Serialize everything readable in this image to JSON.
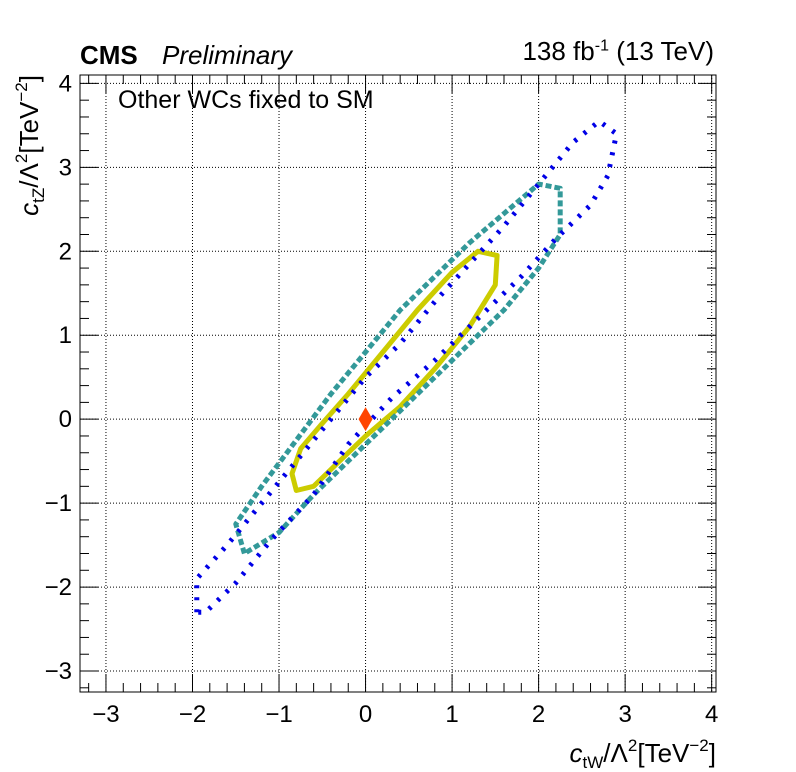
{
  "header": {
    "experiment": "CMS",
    "status": "Preliminary",
    "lumi_value": "138 fb",
    "lumi_exp": "-1",
    "energy": "(13 TeV)",
    "annotation": "Other WCs fixed to SM"
  },
  "chart_data": {
    "type": "contour",
    "xlabel_parts": {
      "c": "c",
      "sub": "tW",
      "mid": "/Λ",
      "sq": "2",
      "unit": "[TeV",
      "exp": "−2",
      "close": "]"
    },
    "ylabel_parts": {
      "c": "c",
      "sub": "tZ",
      "mid": "/Λ",
      "sq": "2",
      "unit": "[TeV",
      "exp": "−2",
      "close": "]"
    },
    "xlim": [
      -3.3,
      4.05
    ],
    "ylim": [
      -3.25,
      4.1
    ],
    "xticks": [
      -3,
      -2,
      -1,
      0,
      1,
      2,
      3,
      4
    ],
    "yticks": [
      -3,
      -2,
      -1,
      0,
      1,
      2,
      3,
      4
    ],
    "xtick_labels": [
      "−3",
      "−2",
      "−1",
      "0",
      "1",
      "2",
      "3",
      "4"
    ],
    "ytick_labels": [
      "−3",
      "−2",
      "−1",
      "0",
      "1",
      "2",
      "3",
      "4"
    ],
    "grid": true,
    "colors": {
      "inner": "#cccc00",
      "middle": "#339999",
      "outer": "#0000e6",
      "point": "#ff4500"
    },
    "contours": [
      {
        "id": "inner",
        "style": "solid",
        "points": [
          [
            -0.8,
            -0.85
          ],
          [
            -0.85,
            -0.65
          ],
          [
            -0.75,
            -0.35
          ],
          [
            -0.5,
            -0.05
          ],
          [
            -0.2,
            0.3
          ],
          [
            0.2,
            0.8
          ],
          [
            0.6,
            1.3
          ],
          [
            1.0,
            1.75
          ],
          [
            1.3,
            2.0
          ],
          [
            1.52,
            1.95
          ],
          [
            1.5,
            1.6
          ],
          [
            1.2,
            1.1
          ],
          [
            0.8,
            0.6
          ],
          [
            0.4,
            0.15
          ],
          [
            0.0,
            -0.2
          ],
          [
            -0.3,
            -0.5
          ],
          [
            -0.6,
            -0.8
          ]
        ]
      },
      {
        "id": "middle",
        "style": "dashed",
        "points": [
          [
            -1.4,
            -1.6
          ],
          [
            -1.5,
            -1.25
          ],
          [
            -1.2,
            -0.8
          ],
          [
            -0.8,
            -0.25
          ],
          [
            -0.4,
            0.3
          ],
          [
            0.0,
            0.8
          ],
          [
            0.4,
            1.3
          ],
          [
            0.8,
            1.7
          ],
          [
            1.2,
            2.1
          ],
          [
            1.6,
            2.45
          ],
          [
            2.0,
            2.8
          ],
          [
            2.25,
            2.75
          ],
          [
            2.25,
            2.2
          ],
          [
            2.0,
            1.8
          ],
          [
            1.6,
            1.3
          ],
          [
            1.1,
            0.8
          ],
          [
            0.6,
            0.3
          ],
          [
            0.2,
            -0.1
          ],
          [
            -0.2,
            -0.5
          ],
          [
            -0.6,
            -0.9
          ],
          [
            -1.0,
            -1.35
          ]
        ]
      },
      {
        "id": "outer",
        "style": "dotted",
        "points": [
          [
            -1.95,
            -2.3
          ],
          [
            -1.95,
            -1.9
          ],
          [
            -1.6,
            -1.5
          ],
          [
            -1.2,
            -1.0
          ],
          [
            -0.8,
            -0.5
          ],
          [
            -0.4,
            0.0
          ],
          [
            0.0,
            0.5
          ],
          [
            0.4,
            0.9
          ],
          [
            0.8,
            1.4
          ],
          [
            1.2,
            1.85
          ],
          [
            1.6,
            2.3
          ],
          [
            2.0,
            2.8
          ],
          [
            2.4,
            3.3
          ],
          [
            2.7,
            3.55
          ],
          [
            2.9,
            3.4
          ],
          [
            2.8,
            2.9
          ],
          [
            2.6,
            2.55
          ],
          [
            2.2,
            2.15
          ],
          [
            1.8,
            1.7
          ],
          [
            1.3,
            1.2
          ],
          [
            0.8,
            0.7
          ],
          [
            0.3,
            0.25
          ],
          [
            -0.2,
            -0.3
          ],
          [
            -0.6,
            -0.9
          ],
          [
            -1.1,
            -1.45
          ],
          [
            -1.5,
            -1.95
          ],
          [
            -1.85,
            -2.3
          ]
        ]
      }
    ],
    "points": [
      {
        "x": 0.0,
        "y": 0.0,
        "marker": "diamond"
      }
    ]
  }
}
